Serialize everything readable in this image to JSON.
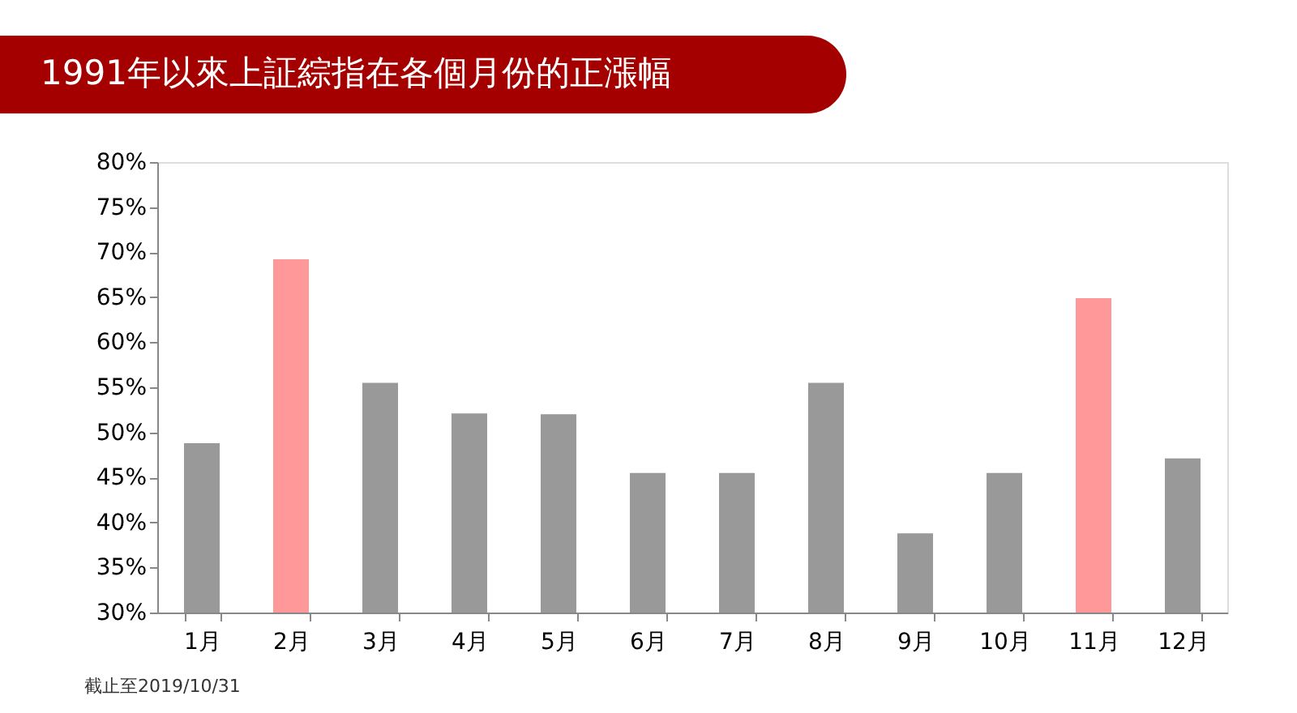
{
  "chart_data": {
    "type": "bar",
    "title": "1991年以來上証綜指在各個月份的正漲幅",
    "categories": [
      "1月",
      "2月",
      "3月",
      "4月",
      "5月",
      "6月",
      "7月",
      "8月",
      "9月",
      "10月",
      "11月",
      "12月"
    ],
    "values": [
      48.8,
      69.2,
      55.5,
      52.1,
      52.0,
      45.5,
      45.5,
      55.5,
      38.8,
      45.5,
      64.9,
      47.1
    ],
    "colors": [
      "#999999",
      "#ff9999",
      "#999999",
      "#999999",
      "#999999",
      "#999999",
      "#999999",
      "#999999",
      "#999999",
      "#999999",
      "#ff9999",
      "#999999"
    ],
    "ylim": [
      30,
      80
    ],
    "yticks": [
      {
        "value": 30,
        "label": "30%"
      },
      {
        "value": 35,
        "label": "35%"
      },
      {
        "value": 40,
        "label": "40%"
      },
      {
        "value": 45,
        "label": "45%"
      },
      {
        "value": 50,
        "label": "50%"
      },
      {
        "value": 55,
        "label": "55%"
      },
      {
        "value": 60,
        "label": "60%"
      },
      {
        "value": 65,
        "label": "65%"
      },
      {
        "value": 70,
        "label": "70%"
      },
      {
        "value": 75,
        "label": "75%"
      },
      {
        "value": 80,
        "label": "80%"
      }
    ],
    "grid": false,
    "annotations": [
      "截止至2019/10/31"
    ]
  }
}
